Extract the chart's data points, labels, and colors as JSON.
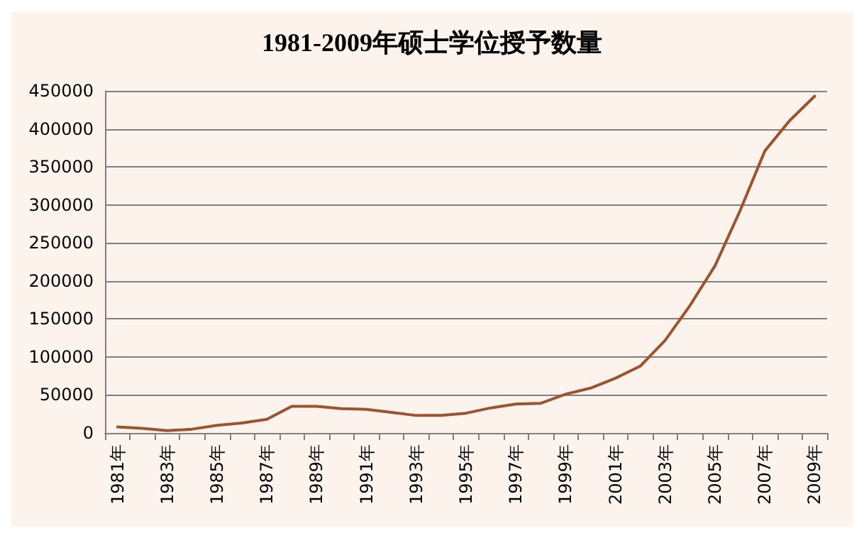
{
  "chart_data": {
    "type": "line",
    "title": "1981-2009年硕士学位授予数量",
    "categories": [
      "1981年",
      null,
      "1983年",
      null,
      "1985年",
      null,
      "1987年",
      null,
      "1989年",
      null,
      "1991年",
      null,
      "1993年",
      null,
      "1995年",
      null,
      "1997年",
      null,
      "1999年",
      null,
      "2001年",
      null,
      "2003年",
      null,
      "2005年",
      null,
      "2007年",
      null,
      "2009年"
    ],
    "series": [
      {
        "color": "#a0522d",
        "values": [
          8000,
          6000,
          3000,
          5000,
          10000,
          13000,
          18000,
          35000,
          35000,
          32000,
          31000,
          27000,
          23000,
          23000,
          26000,
          33000,
          38000,
          39000,
          51000,
          59000,
          72000,
          88000,
          122000,
          168000,
          220000,
          292000,
          371000,
          411000,
          443000
        ]
      }
    ],
    "ylim": [
      0,
      450000
    ],
    "yticks": [
      0,
      50000,
      100000,
      150000,
      200000,
      250000,
      300000,
      350000,
      400000,
      450000
    ],
    "grid": "y",
    "marker": "none",
    "line_style": "solid"
  }
}
